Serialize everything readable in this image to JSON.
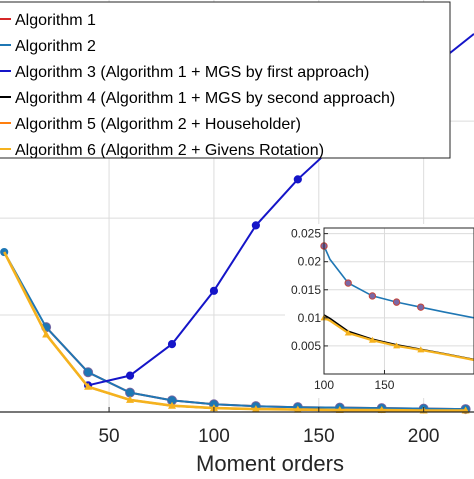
{
  "chart_data": {
    "type": "line",
    "xlabel": "Moment orders",
    "ylabel": "",
    "xlim": [
      -2,
      224
    ],
    "ylim": [
      0,
      0.085
    ],
    "xticks": [
      50,
      100,
      150,
      200
    ],
    "grid": true,
    "legend": "top-left",
    "series": [
      {
        "name": "Algorithm 1",
        "color": "#d62728",
        "marker": "circle",
        "x": [
          20,
          40,
          60,
          80,
          100,
          120,
          140,
          160,
          180,
          200,
          220
        ],
        "y": [
          0.0175,
          0.0082,
          0.004,
          0.0024,
          0.0016,
          0.0012,
          0.001,
          0.0009,
          0.0008,
          0.0007,
          0.0006
        ]
      },
      {
        "name": "Algorithm 2",
        "color": "#1f77b4",
        "marker": "circle",
        "x": [
          0,
          20,
          40,
          60,
          80,
          100,
          120,
          140,
          160,
          180,
          200,
          220
        ],
        "y": [
          0.033,
          0.0175,
          0.0082,
          0.004,
          0.0024,
          0.0016,
          0.0012,
          0.001,
          0.0009,
          0.0008,
          0.0007,
          0.0006
        ]
      },
      {
        "name": "Algorithm 3 (Algorithm 1 + MGS by first approach)",
        "color": "#1515c8",
        "marker": "circle",
        "x": [
          40,
          60,
          80,
          100,
          120,
          140,
          160,
          224
        ],
        "y": [
          0.0055,
          0.0075,
          0.014,
          0.025,
          0.0385,
          0.048,
          0.056,
          0.078
        ]
      },
      {
        "name": "Algorithm 4 (Algorithm 1 + MGS by second approach)",
        "color": "#000000",
        "marker": "none",
        "x": [
          20,
          40,
          60,
          80,
          100,
          120,
          140,
          160,
          180,
          200,
          220
        ],
        "y": [
          0.016,
          0.0052,
          0.0025,
          0.0013,
          0.0008,
          0.0006,
          0.0005,
          0.0004,
          0.0004,
          0.0003,
          0.0003
        ]
      },
      {
        "name": "Algorithm 5 (Algorithm 2 + Householder)",
        "color": "#ff7f0e",
        "marker": "none",
        "x": [
          20,
          40,
          60,
          80,
          100,
          120,
          140,
          160,
          180,
          200,
          220
        ],
        "y": [
          0.016,
          0.0052,
          0.0025,
          0.0013,
          0.0008,
          0.0006,
          0.0005,
          0.0004,
          0.0004,
          0.0003,
          0.0003
        ]
      },
      {
        "name": "Algorithm 6 (Algorithm 2 + Givens Rotation)",
        "color": "#f5b21e",
        "marker": "triangle",
        "x": [
          0,
          20,
          40,
          60,
          80,
          100,
          120,
          140,
          160,
          180,
          200,
          220
        ],
        "y": [
          0.033,
          0.016,
          0.0052,
          0.0025,
          0.0013,
          0.0008,
          0.0006,
          0.0005,
          0.0004,
          0.0004,
          0.0003,
          0.0003
        ]
      }
    ],
    "inset": {
      "xlim": [
        100,
        224
      ],
      "ylim": [
        0,
        0.026
      ],
      "xticks": [
        100,
        150
      ],
      "yticks": [
        0.005,
        0.01,
        0.015,
        0.02,
        0.025
      ],
      "ytick_labels": [
        "0.005",
        "0.01",
        "0.015",
        "0.02",
        "0.025"
      ],
      "series": [
        {
          "color": "#1f77b4",
          "x": [
            100,
            105,
            120,
            140,
            160,
            180,
            200,
            224
          ],
          "y": [
            0.0228,
            0.0204,
            0.0162,
            0.0139,
            0.0128,
            0.0119,
            0.011,
            0.01
          ],
          "markers_x": [
            100,
            120,
            140,
            160,
            180
          ],
          "markers_y": [
            0.0228,
            0.0162,
            0.0139,
            0.0128,
            0.0119
          ]
        },
        {
          "color": "#000000",
          "x": [
            100,
            105,
            120,
            140,
            160,
            180,
            200,
            224
          ],
          "y": [
            0.0105,
            0.0099,
            0.0076,
            0.0062,
            0.0052,
            0.0044,
            0.0036,
            0.0026
          ],
          "markers_x": [],
          "markers_y": []
        },
        {
          "color": "#f5b21e",
          "x": [
            100,
            105,
            120,
            140,
            160,
            180,
            200,
            224
          ],
          "y": [
            0.01,
            0.0095,
            0.0073,
            0.006,
            0.005,
            0.0043,
            0.0035,
            0.0025
          ],
          "markers_x": [
            100,
            120,
            140,
            160,
            180
          ],
          "markers_y": [
            0.01,
            0.0073,
            0.006,
            0.005,
            0.0043
          ]
        }
      ]
    }
  }
}
